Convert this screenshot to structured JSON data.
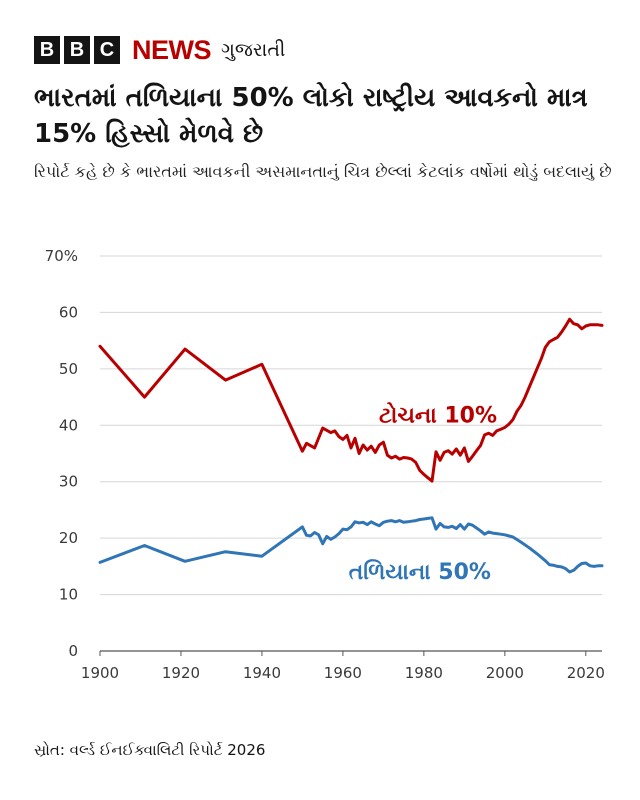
{
  "brand": {
    "letters": [
      "B",
      "B",
      "C"
    ],
    "name": "NEWS",
    "language": "ગુજરાતી"
  },
  "title": "ભારતમાં તળિયાના 50% લોકો રાષ્ટ્રીય આવકનો માત્ર 15% હિસ્સો મેળવે છે",
  "subtitle": "રિપોર્ટ કહે છે કે ભારતમાં આવકની અસમાનતાનું ચિત્ર છેલ્લાં કેટલાંક વર્ષોમાં થોડું બદલાયું છે",
  "source": "સ્રોત: વર્લ્ડ ઈનઈક્વાલિટી રિપોર્ટ 2026",
  "chart_data": {
    "type": "line",
    "title": "",
    "xlabel": "",
    "ylabel": "",
    "xlim": [
      1900,
      2024
    ],
    "ylim": [
      0,
      70
    ],
    "x_ticks": [
      1900,
      1920,
      1940,
      1960,
      1980,
      2000,
      2020
    ],
    "y_ticks": [
      0,
      10,
      20,
      30,
      40,
      50,
      60,
      70
    ],
    "y_tick_labels": [
      "0",
      "10",
      "20",
      "30",
      "40",
      "50",
      "60",
      "70%"
    ],
    "grid": "horizontal",
    "legend": "inline labels",
    "series": [
      {
        "name": "ટોચના 10%",
        "color": "#b80000",
        "points": [
          [
            1900,
            54
          ],
          [
            1911,
            45
          ],
          [
            1921,
            53.5
          ],
          [
            1931,
            48
          ],
          [
            1940,
            50.8
          ],
          [
            1950,
            35.4
          ],
          [
            1951,
            36.8
          ],
          [
            1953,
            36
          ],
          [
            1955,
            39.5
          ],
          [
            1957,
            38.7
          ],
          [
            1958,
            39
          ],
          [
            1959,
            38
          ],
          [
            1960,
            37.5
          ],
          [
            1961,
            38.2
          ],
          [
            1962,
            36
          ],
          [
            1963,
            37.7
          ],
          [
            1964,
            35
          ],
          [
            1965,
            36.5
          ],
          [
            1966,
            35.6
          ],
          [
            1967,
            36.3
          ],
          [
            1968,
            35.2
          ],
          [
            1969,
            36.5
          ],
          [
            1970,
            37
          ],
          [
            1971,
            34.7
          ],
          [
            1972,
            34.2
          ],
          [
            1973,
            34.5
          ],
          [
            1974,
            34
          ],
          [
            1975,
            34.3
          ],
          [
            1976,
            34.2
          ],
          [
            1977,
            34
          ],
          [
            1978,
            33.4
          ],
          [
            1979,
            32
          ],
          [
            1980,
            31.3
          ],
          [
            1981,
            30.7
          ],
          [
            1982,
            30.1
          ],
          [
            1983,
            35.3
          ],
          [
            1984,
            33.8
          ],
          [
            1985,
            35.2
          ],
          [
            1986,
            35.5
          ],
          [
            1987,
            34.9
          ],
          [
            1988,
            35.8
          ],
          [
            1989,
            34.7
          ],
          [
            1990,
            36
          ],
          [
            1991,
            33.6
          ],
          [
            1992,
            34.5
          ],
          [
            1993,
            35.5
          ],
          [
            1994,
            36.4
          ],
          [
            1995,
            38.3
          ],
          [
            1996,
            38.6
          ],
          [
            1997,
            38.2
          ],
          [
            1998,
            39
          ],
          [
            1999,
            39.3
          ],
          [
            2000,
            39.6
          ],
          [
            2001,
            40.2
          ],
          [
            2002,
            41
          ],
          [
            2003,
            42.5
          ],
          [
            2004,
            43.5
          ],
          [
            2005,
            45
          ],
          [
            2006,
            46.7
          ],
          [
            2007,
            48.4
          ],
          [
            2008,
            50.1
          ],
          [
            2009,
            51.8
          ],
          [
            2010,
            53.8
          ],
          [
            2011,
            54.8
          ],
          [
            2012,
            55.2
          ],
          [
            2013,
            55.6
          ],
          [
            2014,
            56.5
          ],
          [
            2015,
            57.6
          ],
          [
            2016,
            58.8
          ],
          [
            2017,
            58
          ],
          [
            2018,
            57.8
          ],
          [
            2019,
            57.1
          ],
          [
            2020,
            57.6
          ],
          [
            2021,
            57.8
          ],
          [
            2022,
            57.8
          ],
          [
            2023,
            57.8
          ],
          [
            2024,
            57.7
          ]
        ]
      },
      {
        "name": "તળિયાના 50%",
        "color": "#3075b5",
        "points": [
          [
            1900,
            15.7
          ],
          [
            1911,
            18.7
          ],
          [
            1921,
            15.9
          ],
          [
            1931,
            17.6
          ],
          [
            1940,
            16.8
          ],
          [
            1950,
            22
          ],
          [
            1951,
            20.5
          ],
          [
            1952,
            20.4
          ],
          [
            1953,
            21
          ],
          [
            1954,
            20.6
          ],
          [
            1955,
            19
          ],
          [
            1956,
            20.3
          ],
          [
            1957,
            19.8
          ],
          [
            1958,
            20.2
          ],
          [
            1959,
            20.8
          ],
          [
            1960,
            21.6
          ],
          [
            1961,
            21.5
          ],
          [
            1962,
            22
          ],
          [
            1963,
            22.9
          ],
          [
            1964,
            22.7
          ],
          [
            1965,
            22.8
          ],
          [
            1966,
            22.4
          ],
          [
            1967,
            22.9
          ],
          [
            1968,
            22.5
          ],
          [
            1969,
            22.2
          ],
          [
            1970,
            22.8
          ],
          [
            1971,
            23
          ],
          [
            1972,
            23.1
          ],
          [
            1973,
            22.9
          ],
          [
            1974,
            23.1
          ],
          [
            1975,
            22.8
          ],
          [
            1976,
            22.9
          ],
          [
            1977,
            23
          ],
          [
            1978,
            23.1
          ],
          [
            1979,
            23.3
          ],
          [
            1980,
            23.4
          ],
          [
            1981,
            23.5
          ],
          [
            1982,
            23.6
          ],
          [
            1983,
            21.6
          ],
          [
            1984,
            22.6
          ],
          [
            1985,
            22
          ],
          [
            1986,
            21.9
          ],
          [
            1987,
            22.1
          ],
          [
            1988,
            21.7
          ],
          [
            1989,
            22.4
          ],
          [
            1990,
            21.6
          ],
          [
            1991,
            22.5
          ],
          [
            1992,
            22.3
          ],
          [
            1993,
            21.8
          ],
          [
            1994,
            21.3
          ],
          [
            1995,
            20.7
          ],
          [
            1996,
            21.1
          ],
          [
            1997,
            20.9
          ],
          [
            1998,
            20.8
          ],
          [
            1999,
            20.7
          ],
          [
            2000,
            20.6
          ],
          [
            2002,
            20.2
          ],
          [
            2004,
            19.3
          ],
          [
            2006,
            18.3
          ],
          [
            2008,
            17.2
          ],
          [
            2010,
            16
          ],
          [
            2011,
            15.3
          ],
          [
            2012,
            15.2
          ],
          [
            2013,
            15
          ],
          [
            2014,
            14.9
          ],
          [
            2015,
            14.6
          ],
          [
            2016,
            14
          ],
          [
            2017,
            14.3
          ],
          [
            2018,
            15
          ],
          [
            2019,
            15.5
          ],
          [
            2020,
            15.6
          ],
          [
            2021,
            15.1
          ],
          [
            2022,
            15
          ],
          [
            2023,
            15.1
          ],
          [
            2024,
            15.1
          ]
        ]
      }
    ]
  }
}
